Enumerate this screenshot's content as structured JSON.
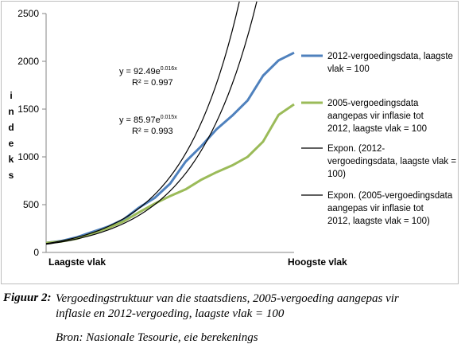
{
  "chart_data": {
    "type": "line",
    "ylabel": "Indeks",
    "ylim": [
      0,
      2500
    ],
    "yticks": [
      "0",
      "500",
      "1000",
      "1500",
      "2000",
      "2500"
    ],
    "xlabels": {
      "left": "Laagste vlak",
      "right": "Hoogste vlak"
    },
    "grid": false,
    "legend_position": "right",
    "x": [
      1,
      2,
      3,
      4,
      5,
      6,
      7,
      8,
      9,
      10,
      11,
      12,
      13,
      14,
      15,
      16,
      17
    ],
    "series": [
      {
        "name": "2012-vergoedingsdata, laagste vlak = 100",
        "color": "#4f81bd",
        "values": [
          100,
          120,
          160,
          215,
          270,
          345,
          470,
          570,
          720,
          950,
          1110,
          1290,
          1430,
          1590,
          1850,
          2010,
          2090
        ]
      },
      {
        "name": "2005-vergoedingsdata aangepas vir inflasie tot 2012, laagste vlak = 100",
        "color": "#9bbb59",
        "values": [
          100,
          115,
          145,
          200,
          255,
          325,
          420,
          510,
          590,
          660,
          760,
          840,
          910,
          1000,
          1160,
          1440,
          1550
        ]
      }
    ],
    "trendlines": [
      {
        "name": "Expon. (2012-vergoedingsdata, laagste vlak = 100)",
        "color": "#000000",
        "a": 92.49,
        "b": 0.016,
        "equation": {
          "prefix": "y = 92.49e",
          "exponent": "0.016x",
          "r2": "R² = 0.997"
        }
      },
      {
        "name": "Expon. (2005-vergoedingsdata aangepas vir inflasie tot 2012, laagste vlak = 100)",
        "color": "#000000",
        "a": 85.97,
        "b": 0.015,
        "equation": {
          "prefix": "y = 85.97e",
          "exponent": "0.015x",
          "r2": "R² = 0.993"
        }
      }
    ],
    "legend": [
      {
        "lines": [
          "2012-vergoedingsdata, laagste",
          "vlak = 100"
        ],
        "color": "#4f81bd",
        "stroke": 3
      },
      {
        "lines": [
          "2005-vergoedingsdata",
          "aangepas vir inflasie tot",
          "2012, laagste vlak = 100"
        ],
        "color": "#9bbb59",
        "stroke": 3
      },
      {
        "lines": [
          "Expon. (2012-",
          "vergoedingsdata, laagste vlak =",
          "100)"
        ],
        "color": "#000000",
        "stroke": 1.2
      },
      {
        "lines": [
          "Expon. (2005-vergoedingsdata",
          "aangepas vir inflasie tot",
          "2012, laagste vlak = 100)"
        ],
        "color": "#000000",
        "stroke": 1.2
      }
    ]
  },
  "caption": {
    "label": "Figuur 2:",
    "lines": [
      "Vergoedingstruktuur van die staatsdiens, 2005-vergoeding aangepas vir",
      "inflasie en 2012-vergoeding, laagste vlak = 100"
    ],
    "source": "Bron: Nasionale Tesourie, eie berekenings"
  }
}
